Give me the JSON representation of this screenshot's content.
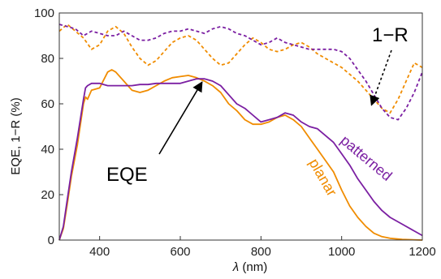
{
  "chart_data": {
    "type": "line",
    "xlabel_symbol": "λ",
    "xlabel_unit": "(nm)",
    "ylabel": "EQE, 1−R (%)",
    "xlim": [
      300,
      1200
    ],
    "ylim": [
      0,
      100
    ],
    "xticks": [
      400,
      600,
      800,
      1000,
      1200
    ],
    "yticks": [
      0,
      20,
      40,
      60,
      80,
      100
    ],
    "grid": false,
    "series": [
      {
        "name": "planar",
        "kind": "EQE",
        "color": "#F08C00",
        "dashed": false,
        "x": [
          300,
          310,
          320,
          330,
          345,
          360,
          365,
          370,
          380,
          400,
          420,
          430,
          440,
          460,
          480,
          500,
          520,
          540,
          560,
          580,
          600,
          620,
          640,
          660,
          680,
          700,
          720,
          740,
          760,
          780,
          800,
          820,
          840,
          860,
          880,
          900,
          920,
          940,
          960,
          980,
          1000,
          1020,
          1040,
          1060,
          1080,
          1100,
          1120,
          1150,
          1200
        ],
        "y": [
          0,
          5,
          16,
          28,
          42,
          60,
          63,
          62,
          66,
          67,
          74,
          75,
          74,
          70,
          66,
          65,
          66,
          68,
          70,
          71.5,
          72,
          72.5,
          71.5,
          70,
          68,
          65,
          60,
          57,
          53,
          51,
          51,
          52,
          54,
          55,
          53,
          50,
          45,
          40,
          35,
          30,
          22,
          15,
          10,
          6,
          3,
          1.5,
          0.8,
          0.3,
          0
        ]
      },
      {
        "name": "patterned",
        "kind": "EQE",
        "color": "#7B1FA2",
        "dashed": false,
        "x": [
          300,
          310,
          320,
          330,
          345,
          360,
          365,
          370,
          380,
          400,
          420,
          440,
          460,
          480,
          500,
          520,
          540,
          560,
          580,
          600,
          620,
          640,
          660,
          680,
          700,
          720,
          740,
          760,
          780,
          800,
          820,
          840,
          860,
          880,
          900,
          920,
          940,
          960,
          980,
          1000,
          1020,
          1040,
          1060,
          1080,
          1100,
          1120,
          1150,
          1200
        ],
        "y": [
          0,
          6,
          18,
          30,
          45,
          62,
          67,
          68,
          69,
          69,
          68,
          68,
          68,
          68,
          68.5,
          68.5,
          69,
          69,
          69,
          69,
          70,
          71,
          71,
          70,
          68,
          64,
          60,
          58,
          55,
          52,
          53,
          54,
          56,
          55,
          52,
          50,
          49,
          46,
          43,
          38,
          33,
          27,
          22,
          17,
          13,
          10,
          7,
          2
        ]
      },
      {
        "name": "planar",
        "kind": "1-R",
        "color": "#F08C00",
        "dashed": true,
        "x": [
          300,
          320,
          340,
          360,
          380,
          400,
          420,
          440,
          460,
          480,
          500,
          520,
          540,
          560,
          580,
          600,
          620,
          640,
          660,
          680,
          700,
          720,
          740,
          760,
          780,
          800,
          820,
          840,
          860,
          880,
          900,
          920,
          940,
          960,
          980,
          1000,
          1020,
          1040,
          1060,
          1080,
          1100,
          1120,
          1140,
          1160,
          1180,
          1200
        ],
        "y": [
          92,
          95,
          92,
          89,
          84,
          86,
          92,
          94,
          91,
          85,
          80,
          77,
          79,
          83,
          87,
          89,
          90,
          88,
          84,
          80,
          77,
          78,
          82,
          86,
          89,
          87,
          84,
          83,
          84,
          86,
          87,
          85,
          82,
          80,
          78,
          76,
          73,
          70,
          66,
          62,
          58,
          56,
          62,
          70,
          78,
          76
        ]
      },
      {
        "name": "patterned",
        "kind": "1-R",
        "color": "#7B1FA2",
        "dashed": true,
        "x": [
          300,
          320,
          340,
          360,
          380,
          400,
          420,
          440,
          460,
          480,
          500,
          520,
          540,
          560,
          580,
          600,
          620,
          640,
          660,
          680,
          700,
          720,
          740,
          760,
          780,
          800,
          820,
          840,
          860,
          880,
          900,
          920,
          940,
          960,
          980,
          1000,
          1020,
          1040,
          1060,
          1080,
          1100,
          1120,
          1140,
          1160,
          1180,
          1200
        ],
        "y": [
          95,
          94,
          93,
          90,
          92,
          91,
          90,
          90,
          92,
          90,
          88,
          88,
          89,
          91,
          92,
          92,
          93,
          92,
          91,
          93,
          94,
          93,
          91,
          90,
          88,
          86,
          87,
          89,
          87,
          86,
          85,
          84,
          84,
          84,
          84,
          83,
          80,
          75,
          70,
          64,
          58,
          54,
          53,
          58,
          65,
          74
        ]
      }
    ],
    "annotations": [
      {
        "text": "1−R",
        "target": [
          1080,
          58
        ]
      },
      {
        "text": "EQE",
        "target": [
          662,
          71
        ]
      },
      {
        "text": "patterned"
      },
      {
        "text": "planar"
      }
    ]
  }
}
